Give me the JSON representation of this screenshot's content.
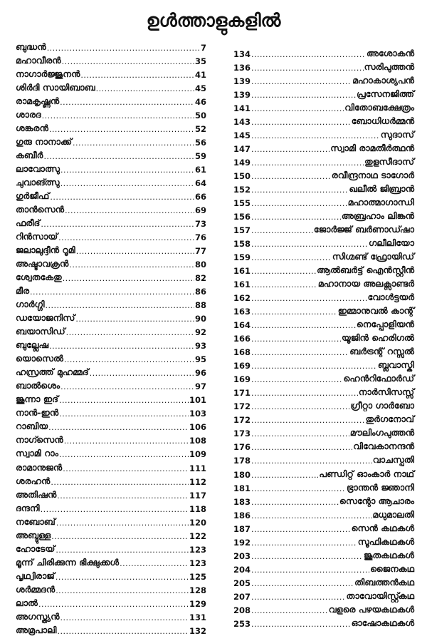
{
  "title": "ഉൾത്താളുകളിൽ",
  "left_column": [
    {
      "name": "ബുദ്ധൻ",
      "page": "7"
    },
    {
      "name": "മഹാവീരൻ",
      "page": "35"
    },
    {
      "name": "നാഗാർജ്ജുനൻ",
      "page": "41"
    },
    {
      "name": "ശിർദി സായിബാബ",
      "page": "45"
    },
    {
      "name": "രാമകൃഷ്ണൻ",
      "page": "46"
    },
    {
      "name": "ശാരദ",
      "page": "50"
    },
    {
      "name": "ശങ്കരൻ",
      "page": "52"
    },
    {
      "name": "ഗുരു നാനാക്ക്",
      "page": "56"
    },
    {
      "name": "കബീർ",
      "page": "59"
    },
    {
      "name": "ലാവോത്സു",
      "page": "61"
    },
    {
      "name": "ചുവാങ്ത്സു",
      "page": "64"
    },
    {
      "name": "ഗുർജീഫ്",
      "page": "66"
    },
    {
      "name": "താൻസെൻ",
      "page": "69"
    },
    {
      "name": "ഫരീദ്",
      "page": "73"
    },
    {
      "name": "റിൻസായ്",
      "page": "76"
    },
    {
      "name": "ജലാലുദ്ദീൻ റൂമി",
      "page": "77"
    },
    {
      "name": "അഷ്ടാവക്രൻ",
      "page": "80"
    },
    {
      "name": "ശ്വേതകേതു",
      "page": "82"
    },
    {
      "name": "മീര",
      "page": "86"
    },
    {
      "name": "ഗാർഗ്ഗി",
      "page": "88"
    },
    {
      "name": "ഡയോജനിസ്",
      "page": "90"
    },
    {
      "name": "ബയാസിഡ്",
      "page": "92"
    },
    {
      "name": "ബുല്ലേഷ",
      "page": "93"
    },
    {
      "name": "യൊസെൽ",
      "page": "95"
    },
    {
      "name": "ഹസ്രത്ത് മുഹമ്മദ്",
      "page": "96"
    },
    {
      "name": "ബാൽശെം",
      "page": "97"
    },
    {
      "name": "ജൂന്നാ ഇദ്",
      "page": "101"
    },
    {
      "name": "നാൻ-ഇൻ",
      "page": "103"
    },
    {
      "name": "റാബിയ",
      "page": "106"
    },
    {
      "name": "നാഗ്സെൻ",
      "page": "108"
    },
    {
      "name": "സ്വാമി റാം",
      "page": "109"
    },
    {
      "name": "രാമാനുജൻ",
      "page": "111"
    },
    {
      "name": "ശരഹൻ",
      "page": "112"
    },
    {
      "name": "അതിഷൻ",
      "page": "117"
    },
    {
      "name": "ദന്ദനി",
      "page": "118"
    },
    {
      "name": "നബോബ്",
      "page": "120"
    },
    {
      "name": "അബ്ദുള്ള",
      "page": "122"
    },
    {
      "name": "ഹോടേയ്",
      "page": "123"
    },
    {
      "name": "മൂന്ന് ചിരിക്കുന്ന ഭിക്ഷുക്കൾ",
      "page": "123"
    },
    {
      "name": "പൃഥ്വിരാജ്",
      "page": "125"
    },
    {
      "name": "ശർമ്മദൻ",
      "page": "128"
    },
    {
      "name": "ലാൽ",
      "page": "129"
    },
    {
      "name": "അഗസ്ത്യൻ",
      "page": "131"
    },
    {
      "name": "അമ്രപാലി",
      "page": "132"
    }
  ],
  "right_column": [
    {
      "page": "134",
      "name": "അശോകൻ"
    },
    {
      "page": "136",
      "name": "സരിപുത്തൻ"
    },
    {
      "page": "139",
      "name": "മഹാകാശ്യപൻ"
    },
    {
      "page": "139",
      "name": "പ്രസേനജിത്ത്"
    },
    {
      "page": "141",
      "name": "വിതോബക്ഷേത്രം"
    },
    {
      "page": "143",
      "name": "ബോധിധർമ്മൻ"
    },
    {
      "page": "145",
      "name": "സുദാസ്"
    },
    {
      "page": "147",
      "name": "സ്വാമി രാമതീർത്ഥൻ"
    },
    {
      "page": "149",
      "name": "തുളസീദാസ്"
    },
    {
      "page": "150",
      "name": "രവീന്ദ്രനാഥ ടാഗോർ"
    },
    {
      "page": "152",
      "name": "ഖലീൽ ജിബ്രാൻ"
    },
    {
      "page": "155",
      "name": "മഹാത്മാഗാന്ധി"
    },
    {
      "page": "156",
      "name": "അബ്രഹാം ലിങ്കൻ"
    },
    {
      "page": "157",
      "name": "ജോർജ്ജ് ബർണാഡ്ഷാ"
    },
    {
      "page": "158",
      "name": "ഗലീലിയോ"
    },
    {
      "page": "159",
      "name": "സിഗ്മണ്ട് ഫ്രോയിഡ്"
    },
    {
      "page": "161",
      "name": "ആൽബർട്ട് ഐൻസ്റ്റീൻ"
    },
    {
      "page": "161",
      "name": "മഹാനായ അലക്സാണ്ടർ"
    },
    {
      "page": "162",
      "name": "വോൾട്ടയർ"
    },
    {
      "page": "163",
      "name": "ഇമ്മാനുവൽ കാന്റ്"
    },
    {
      "page": "164",
      "name": "നെപ്പോളിയൻ"
    },
    {
      "page": "166",
      "name": "യൂജിൻ ഹെരിഗൽ"
    },
    {
      "page": "168",
      "name": "ബർട്രന്റ് റസ്സൽ"
    },
    {
      "page": "169",
      "name": "ബ്ലവാസ്കി"
    },
    {
      "page": "169",
      "name": "ഹെൻറിഫോർഡ്"
    },
    {
      "page": "171",
      "name": "നാർസിസസ്സ്"
    },
    {
      "page": "172",
      "name": "ഗ്രീറ്റാ ഗാർബോ"
    },
    {
      "page": "172",
      "name": "തുർഗനോവ്"
    },
    {
      "page": "173",
      "name": "മൗലിംഗപുത്തൻ"
    },
    {
      "page": "176",
      "name": "വിവേകാനന്ദൻ"
    },
    {
      "page": "178",
      "name": "വാചസ്പതി"
    },
    {
      "page": "180",
      "name": "പണ്ഡിറ്റ് ഓംകാർ നാഥ്"
    },
    {
      "page": "181",
      "name": "ഭ്രാന്തൻ ജ്ഞാനി"
    },
    {
      "page": "183",
      "name": "സെന്റോ ആചാരം"
    },
    {
      "page": "186",
      "name": "മധുമാലതി"
    },
    {
      "page": "187",
      "name": "സെൻ കഥകൾ"
    },
    {
      "page": "192",
      "name": "സൂഫികഥകൾ"
    },
    {
      "page": "203",
      "name": "ജൂതകഥകൾ"
    },
    {
      "page": "204",
      "name": "ജൈനകഥ"
    },
    {
      "page": "205",
      "name": "തിബത്തൻകഥ"
    },
    {
      "page": "207",
      "name": "താവോയിസ്റ്റ്കഥ"
    },
    {
      "page": "208",
      "name": "വളരെ പഴയകഥകൾ"
    },
    {
      "page": "253",
      "name": "ഓഷോകഥകൾ"
    }
  ]
}
